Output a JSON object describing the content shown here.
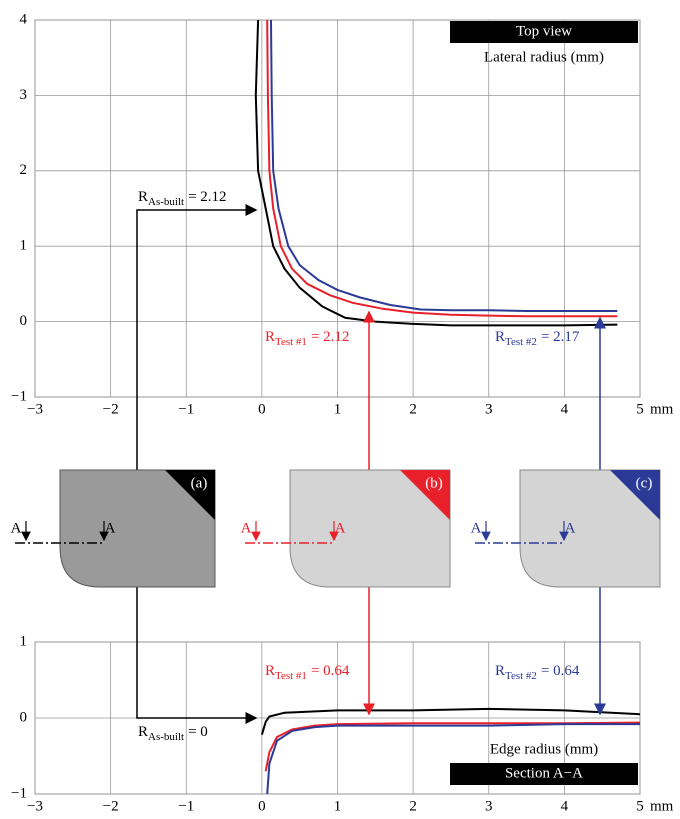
{
  "chart_data": [
    {
      "type": "line",
      "grid": true,
      "xlim": [
        -3,
        5
      ],
      "ylim": [
        -1,
        4
      ],
      "xticks": [
        {
          "value": -3,
          "label": "−3"
        },
        {
          "value": -2,
          "label": "−2"
        },
        {
          "value": -1,
          "label": "−1"
        },
        0,
        1,
        2,
        3,
        4,
        5
      ],
      "x_unit": "mm",
      "yticks": [
        {
          "value": -1,
          "label": "−1"
        },
        0,
        1,
        2,
        3,
        4
      ],
      "title": "Top view",
      "subtitle": "Lateral radius (mm)",
      "series": [
        {
          "color": "#000000",
          "x": [
            -0.05,
            -0.08,
            -0.05,
            0.05,
            0.15,
            0.3,
            0.5,
            0.8,
            1.1,
            1.5,
            2,
            2.5,
            3,
            3.5,
            4,
            4.7
          ],
          "values": [
            4,
            3,
            2,
            1.5,
            1,
            0.7,
            0.45,
            0.2,
            0.05,
            0,
            -0.03,
            -0.05,
            -0.05,
            -0.05,
            -0.05,
            -0.04
          ]
        },
        {
          "color": "#e8202a",
          "x": [
            0.07,
            0.08,
            0.1,
            0.15,
            0.25,
            0.4,
            0.6,
            0.9,
            1.2,
            1.6,
            2,
            2.5,
            3,
            3.5,
            4,
            4.7
          ],
          "values": [
            4,
            3,
            2,
            1.5,
            1,
            0.7,
            0.5,
            0.35,
            0.25,
            0.17,
            0.12,
            0.09,
            0.08,
            0.07,
            0.07,
            0.07
          ]
        },
        {
          "color": "#2b3a96",
          "x": [
            0.12,
            0.13,
            0.15,
            0.22,
            0.35,
            0.5,
            0.75,
            1,
            1.3,
            1.7,
            2.1,
            2.5,
            3,
            3.5,
            4,
            4.7
          ],
          "values": [
            4,
            3,
            2,
            1.5,
            1,
            0.75,
            0.55,
            0.42,
            0.32,
            0.22,
            0.16,
            0.15,
            0.15,
            0.14,
            0.14,
            0.14
          ]
        }
      ],
      "annotations": [
        {
          "symbol": "R",
          "subscript": "As-built",
          "text": "= 2.12",
          "color": "#000000"
        },
        {
          "symbol": "R",
          "subscript": "Test #1",
          "text": "= 2.12",
          "color": "#e8202a"
        },
        {
          "symbol": "R",
          "subscript": "Test #2",
          "text": "= 2.17",
          "color": "#2b3a96"
        }
      ]
    },
    {
      "type": "line",
      "grid": true,
      "xlim": [
        -3,
        5
      ],
      "ylim": [
        -1,
        1
      ],
      "xticks": [
        {
          "value": -3,
          "label": "−3"
        },
        {
          "value": -2,
          "label": "−2"
        },
        {
          "value": -1,
          "label": "−1"
        },
        0,
        1,
        2,
        3,
        4,
        5
      ],
      "x_unit": "mm",
      "yticks": [
        {
          "value": -1,
          "label": "−1"
        },
        0,
        1
      ],
      "title": "Section A−A",
      "subtitle": "Edge radius (mm)",
      "series": [
        {
          "color": "#000000",
          "x": [
            0,
            0.05,
            0.1,
            0.3,
            1,
            2,
            3,
            4,
            5
          ],
          "values": [
            -0.22,
            -0.05,
            0.02,
            0.07,
            0.1,
            0.1,
            0.12,
            0.1,
            0.05
          ]
        },
        {
          "color": "#e8202a",
          "x": [
            0.05,
            0.1,
            0.2,
            0.4,
            0.7,
            1,
            2,
            3,
            4,
            5
          ],
          "values": [
            -0.7,
            -0.45,
            -0.25,
            -0.15,
            -0.1,
            -0.08,
            -0.07,
            -0.07,
            -0.07,
            -0.06
          ]
        },
        {
          "color": "#2b3a96",
          "x": [
            0.07,
            0.1,
            0.2,
            0.4,
            0.7,
            1,
            2,
            3,
            4,
            5
          ],
          "values": [
            -1,
            -0.6,
            -0.3,
            -0.17,
            -0.12,
            -0.1,
            -0.1,
            -0.1,
            -0.08,
            -0.08
          ]
        }
      ],
      "annotations": [
        {
          "symbol": "R",
          "subscript": "As-built",
          "text": "= 0",
          "color": "#000000"
        },
        {
          "symbol": "R",
          "subscript": "Test #1",
          "text": "= 0.64",
          "color": "#e8202a"
        },
        {
          "symbol": "R",
          "subscript": "Test #2",
          "text": "= 0.64",
          "color": "#2b3a96"
        }
      ]
    }
  ],
  "panels": [
    {
      "label": "(a)",
      "section_labels": [
        "A",
        "A"
      ],
      "color": "#000000"
    },
    {
      "label": "(b)",
      "section_labels": [
        "A",
        "A"
      ],
      "color": "#e8202a"
    },
    {
      "label": "(c)",
      "section_labels": [
        "A",
        "A"
      ],
      "color": "#2b3a96"
    }
  ]
}
